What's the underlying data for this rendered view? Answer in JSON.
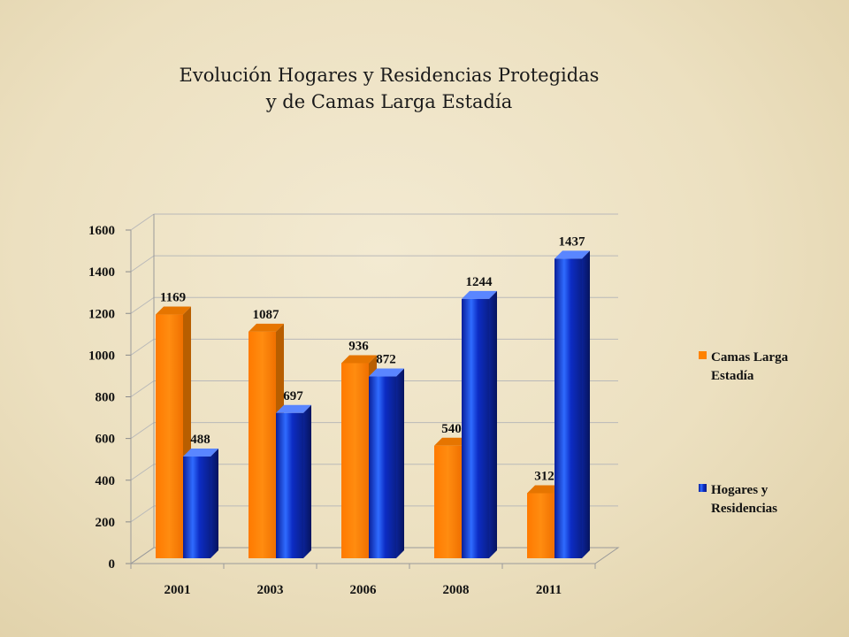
{
  "slide": {
    "title_line1": "Evolución Hogares y Residencias Protegidas",
    "title_line2": "y de   Camas Larga Estadía"
  },
  "chart_data": {
    "type": "bar",
    "categories": [
      "2001",
      "2003",
      "2006",
      "2008",
      "2011"
    ],
    "series": [
      {
        "name": "Camas Larga Estadía",
        "name_lines": [
          "Camas Larga",
          "Estadía"
        ],
        "color": "#ff8200",
        "values": [
          1169,
          1087,
          936,
          540,
          312
        ]
      },
      {
        "name": "Hogares y Residencias",
        "name_lines": [
          "Hogares y",
          "Residencias"
        ],
        "color": "#1a3fd8",
        "values": [
          488,
          697,
          872,
          1244,
          1437
        ]
      }
    ],
    "yticks": [
      0,
      200,
      400,
      600,
      800,
      1000,
      1200,
      1400,
      1600
    ],
    "ylim": [
      0,
      1600
    ],
    "grid": true,
    "legend_position": "right",
    "title": "Evolución Hogares y Residencias Protegidas y de Camas Larga Estadía"
  }
}
